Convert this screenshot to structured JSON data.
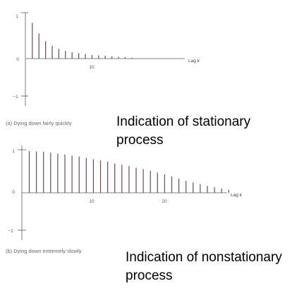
{
  "chart_data": [
    {
      "type": "bar",
      "caption": "(a) Dying down fairly quickly",
      "annotation": [
        "Indication of stationary",
        "process"
      ],
      "xlabel": "Lag k",
      "x_tick_labels": [
        "10"
      ],
      "y_tick_labels": [
        "1",
        "0",
        "−1"
      ],
      "ylim": [
        -1,
        1
      ],
      "x": [
        1,
        2,
        3,
        4,
        5,
        6,
        7,
        8,
        9,
        10,
        11,
        12,
        13,
        14,
        15,
        16
      ],
      "values": [
        0.78,
        0.55,
        0.38,
        0.28,
        0.21,
        0.17,
        0.14,
        0.12,
        0.1,
        0.08,
        0.07,
        0.06,
        0.05,
        0.04,
        0.03,
        0.02
      ],
      "colors": {
        "bars": "#6b4a50",
        "axis": "#5a5a5a"
      }
    },
    {
      "type": "bar",
      "caption": "(b) Dying down extremely slowly",
      "annotation": [
        "Indication of nonstationary",
        "process"
      ],
      "xlabel": "Lag k",
      "x_tick_labels": [
        "10",
        "20"
      ],
      "y_tick_labels": [
        "1",
        "0",
        "−1"
      ],
      "ylim": [
        -1,
        1
      ],
      "x": [
        1,
        2,
        3,
        4,
        5,
        6,
        7,
        8,
        9,
        10,
        11,
        12,
        13,
        14,
        15,
        16,
        17,
        18,
        19,
        20,
        21,
        22,
        23,
        24,
        25,
        26,
        27,
        28,
        29
      ],
      "values": [
        0.97,
        0.96,
        0.95,
        0.93,
        0.91,
        0.89,
        0.86,
        0.84,
        0.81,
        0.78,
        0.75,
        0.72,
        0.68,
        0.65,
        0.62,
        0.58,
        0.55,
        0.51,
        0.47,
        0.43,
        0.38,
        0.33,
        0.28,
        0.24,
        0.2,
        0.16,
        0.13,
        0.1,
        0.07
      ],
      "colors": {
        "bars": "#6b4a50",
        "axis": "#5a5a5a"
      }
    }
  ]
}
